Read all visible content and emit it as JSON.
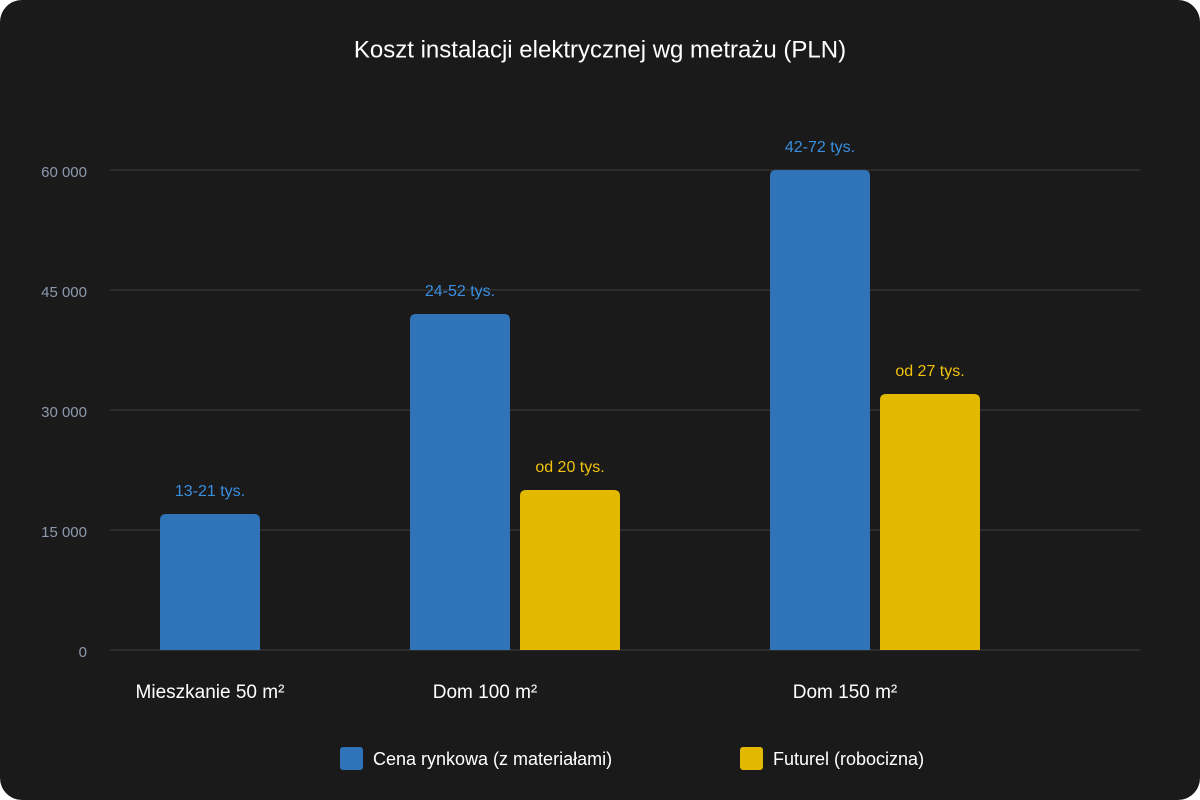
{
  "chart_data": {
    "type": "bar",
    "title": "Koszt instalacji elektrycznej wg metrażu (PLN)",
    "categories": [
      "Mieszkanie 50 m²",
      "Dom 100 m²",
      "Dom 150 m²"
    ],
    "series": [
      {
        "name": "Cena rynkowa (z materiałami)",
        "color": "#2f74b8",
        "label_color": "#3a8ee0",
        "values": [
          17000,
          42000,
          60000
        ],
        "value_labels": [
          "13-21 tys.",
          "24-52 tys.",
          "42-72 tys."
        ]
      },
      {
        "name": "Futurel (robocizna)",
        "color": "#e2b800",
        "label_color": "#f0c20c",
        "values": [
          null,
          20000,
          32000
        ],
        "value_labels": [
          null,
          "od 20 tys.",
          "od 27 tys."
        ]
      }
    ],
    "ylim": [
      0,
      60000
    ],
    "yticks": [
      0,
      {
        "value": 15000,
        "label": "15 000"
      },
      {
        "value": 30000,
        "label": "30 000"
      },
      {
        "value": 45000,
        "label": "45 000"
      },
      {
        "value": 60000,
        "label": "60 000"
      }
    ],
    "grid": true
  }
}
